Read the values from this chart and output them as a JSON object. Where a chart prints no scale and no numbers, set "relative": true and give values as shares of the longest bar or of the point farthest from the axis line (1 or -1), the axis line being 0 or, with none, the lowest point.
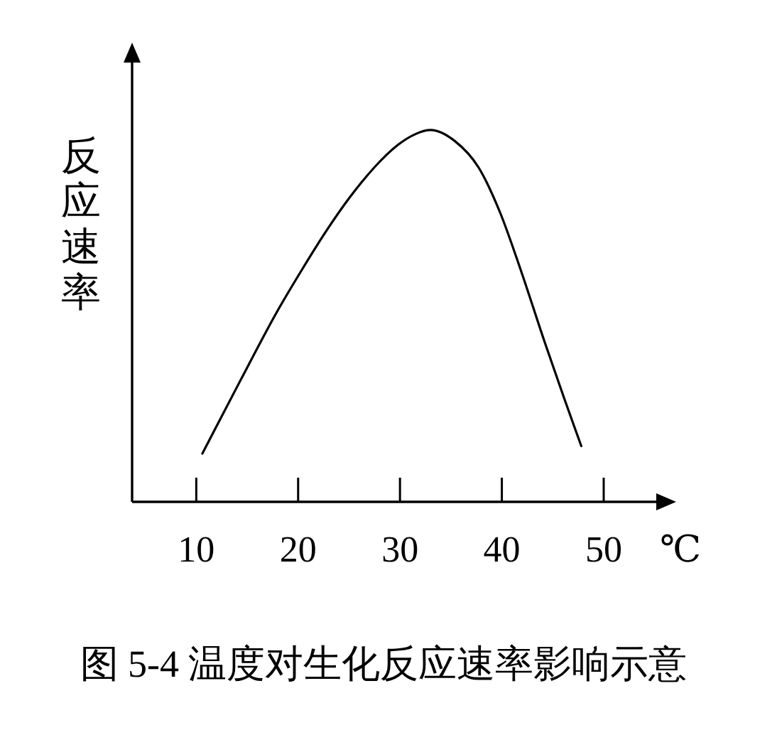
{
  "chart_data": {
    "type": "line",
    "title": "图 5-4 温度对生化反应速率影响示意",
    "xlabel": "℃",
    "ylabel": "反应速率",
    "x": [
      10.6,
      14.4,
      17.9,
      20.5,
      22.8,
      25.1,
      27.5,
      29.8,
      31.6,
      33.0,
      35.4,
      37.7,
      39.8,
      41.9,
      44.2,
      46.1,
      47.8
    ],
    "values": [
      0.13,
      0.33,
      0.51,
      0.63,
      0.73,
      0.82,
      0.9,
      0.96,
      0.99,
      1,
      0.97,
      0.9,
      0.78,
      0.62,
      0.43,
      0.28,
      0.15
    ],
    "color": "#000000",
    "relative": true,
    "xlim": [
      3.7,
      55.3
    ],
    "xticks": [
      10,
      20,
      30,
      40,
      50
    ]
  }
}
